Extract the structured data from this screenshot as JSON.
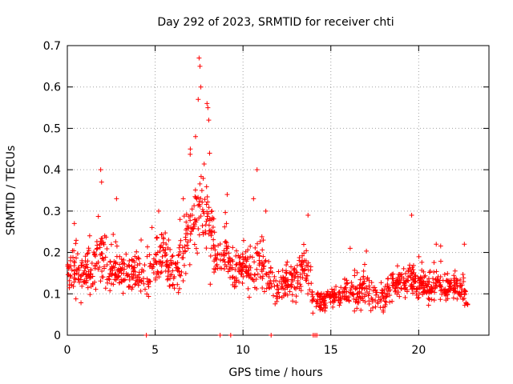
{
  "chart_data": {
    "type": "scatter",
    "title": "Day 292 of 2023, SRMTID for receiver chti",
    "xlabel": "GPS time / hours",
    "ylabel": "SRMTID / TECUs",
    "xlim": [
      0,
      24
    ],
    "ylim": [
      0,
      0.7
    ],
    "xticks": [
      0,
      5,
      10,
      15,
      20
    ],
    "yticks": [
      0,
      0.1,
      0.2,
      0.3,
      0.4,
      0.5,
      0.6,
      0.7
    ],
    "xtick_labels": [
      "0",
      "5",
      "10",
      "15",
      "20"
    ],
    "ytick_labels": [
      "0",
      "0.1",
      "0.2",
      "0.3",
      "0.4",
      "0.5",
      "0.6",
      "0.7"
    ],
    "grid": true,
    "marker": "+",
    "color": "#ff0000",
    "series": [
      {
        "name": "SRMTID",
        "envelope_note": "estimated trend of the dense point cloud: [hour, center, spread]",
        "envelope": [
          [
            0.0,
            0.15,
            0.05
          ],
          [
            0.5,
            0.16,
            0.07
          ],
          [
            1.0,
            0.15,
            0.06
          ],
          [
            1.5,
            0.17,
            0.07
          ],
          [
            2.0,
            0.2,
            0.09
          ],
          [
            2.5,
            0.14,
            0.05
          ],
          [
            3.0,
            0.15,
            0.07
          ],
          [
            3.5,
            0.15,
            0.05
          ],
          [
            4.0,
            0.16,
            0.05
          ],
          [
            4.5,
            0.12,
            0.05
          ],
          [
            5.0,
            0.18,
            0.07
          ],
          [
            5.5,
            0.2,
            0.07
          ],
          [
            6.0,
            0.15,
            0.06
          ],
          [
            6.5,
            0.18,
            0.07
          ],
          [
            7.0,
            0.26,
            0.1
          ],
          [
            7.5,
            0.3,
            0.12
          ],
          [
            8.0,
            0.28,
            0.12
          ],
          [
            8.5,
            0.18,
            0.07
          ],
          [
            9.0,
            0.2,
            0.07
          ],
          [
            9.5,
            0.15,
            0.05
          ],
          [
            10.0,
            0.17,
            0.06
          ],
          [
            10.5,
            0.15,
            0.06
          ],
          [
            11.0,
            0.18,
            0.08
          ],
          [
            11.5,
            0.13,
            0.05
          ],
          [
            12.0,
            0.11,
            0.04
          ],
          [
            12.5,
            0.13,
            0.05
          ],
          [
            13.0,
            0.13,
            0.05
          ],
          [
            13.5,
            0.17,
            0.06
          ],
          [
            14.0,
            0.09,
            0.03
          ],
          [
            14.5,
            0.08,
            0.03
          ],
          [
            15.0,
            0.09,
            0.03
          ],
          [
            15.5,
            0.1,
            0.03
          ],
          [
            16.0,
            0.11,
            0.04
          ],
          [
            16.5,
            0.1,
            0.04
          ],
          [
            17.0,
            0.11,
            0.05
          ],
          [
            17.5,
            0.09,
            0.04
          ],
          [
            18.0,
            0.1,
            0.04
          ],
          [
            18.5,
            0.12,
            0.04
          ],
          [
            19.0,
            0.12,
            0.04
          ],
          [
            19.5,
            0.14,
            0.05
          ],
          [
            20.0,
            0.12,
            0.04
          ],
          [
            20.5,
            0.11,
            0.04
          ],
          [
            21.0,
            0.13,
            0.05
          ],
          [
            21.5,
            0.11,
            0.04
          ],
          [
            22.0,
            0.12,
            0.04
          ],
          [
            22.5,
            0.12,
            0.05
          ],
          [
            22.8,
            0.06,
            0.03
          ]
        ],
        "spikes_note": "prominent excursions: [hour, value]",
        "spikes": [
          [
            0.4,
            0.27
          ],
          [
            1.9,
            0.4
          ],
          [
            1.95,
            0.37
          ],
          [
            2.8,
            0.33
          ],
          [
            4.2,
            0.23
          ],
          [
            5.2,
            0.3
          ],
          [
            6.6,
            0.33
          ],
          [
            7.0,
            0.45
          ],
          [
            7.3,
            0.48
          ],
          [
            7.45,
            0.57
          ],
          [
            7.5,
            0.67
          ],
          [
            7.55,
            0.65
          ],
          [
            7.6,
            0.6
          ],
          [
            7.95,
            0.56
          ],
          [
            8.0,
            0.55
          ],
          [
            8.05,
            0.52
          ],
          [
            8.1,
            0.44
          ],
          [
            9.1,
            0.34
          ],
          [
            10.6,
            0.33
          ],
          [
            10.8,
            0.4
          ],
          [
            11.3,
            0.3
          ],
          [
            13.7,
            0.29
          ],
          [
            16.1,
            0.21
          ],
          [
            19.6,
            0.29
          ],
          [
            21.0,
            0.22
          ],
          [
            22.6,
            0.22
          ]
        ],
        "zero_values_at_hours": [
          4.5,
          8.7,
          9.3,
          11.6,
          14.0,
          14.1,
          14.2
        ]
      }
    ]
  }
}
